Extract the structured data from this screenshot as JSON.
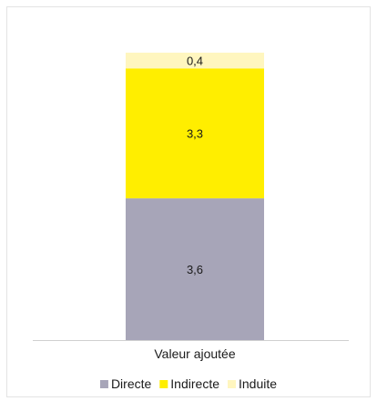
{
  "chart_data": {
    "type": "bar",
    "stacked": true,
    "categories": [
      "Valeur ajoutée"
    ],
    "series": [
      {
        "name": "Directe",
        "values": [
          3.6
        ],
        "label": "3,6",
        "color": "#a7a5b8"
      },
      {
        "name": "Indirecte",
        "values": [
          3.3
        ],
        "label": "3,3",
        "color": "#ffee00"
      },
      {
        "name": "Induite",
        "values": [
          0.4
        ],
        "label": "0,4",
        "color": "#fff6bf"
      }
    ],
    "grid": false,
    "legend": "bottom"
  }
}
